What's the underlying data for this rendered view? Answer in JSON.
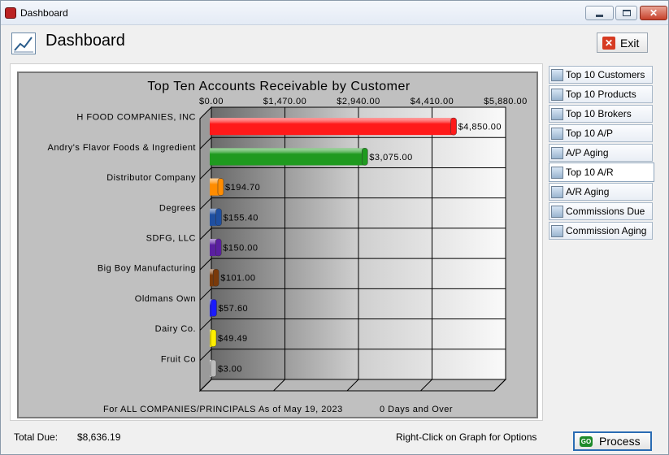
{
  "window": {
    "title": "Dashboard"
  },
  "header": {
    "title": "Dashboard",
    "exit_label": "Exit"
  },
  "sidebar": {
    "items": [
      {
        "label": "Top 10 Customers"
      },
      {
        "label": "Top 10 Products"
      },
      {
        "label": "Top 10 Brokers"
      },
      {
        "label": "Top 10 A/P"
      },
      {
        "label": "A/P Aging"
      },
      {
        "label": "Top 10 A/R",
        "active": true
      },
      {
        "label": "A/R Aging"
      },
      {
        "label": "Commissions Due"
      },
      {
        "label": "Commission Aging"
      }
    ]
  },
  "footer": {
    "total_label": "Total Due:",
    "total_value": "$8,636.19",
    "hint": "Right-Click on Graph for Options",
    "process_label": "Process"
  },
  "chart_data": {
    "type": "bar",
    "orientation": "horizontal",
    "title": "Top Ten Accounts Receivable by Customer",
    "footnote_left": "For ALL COMPANIES/PRINCIPALS As of May 19, 2023",
    "footnote_right": "0 Days and Over",
    "xlim": [
      0,
      5880
    ],
    "x_ticks": [
      "$0.00",
      "$1,470.00",
      "$2,940.00",
      "$4,410.00",
      "$5,880.00"
    ],
    "grid": true,
    "categories": [
      "H FOOD COMPANIES, INC",
      "Andry's Flavor Foods & Ingredient",
      "Distributor Company",
      "Degrees",
      "SDFG, LLC",
      "Big Boy Manufacturing",
      "Oldmans Own",
      "Dairy Co.",
      "Fruit Co"
    ],
    "values": [
      4850.0,
      3075.0,
      194.7,
      155.4,
      150.0,
      101.0,
      57.6,
      49.49,
      3.0
    ],
    "value_labels": [
      "$4,850.00",
      "$3,075.00",
      "$194.70",
      "$155.40",
      "$150.00",
      "$101.00",
      "$57.60",
      "$49.49",
      "$3.00"
    ],
    "colors": [
      "#ff1a1a",
      "#1f9a1f",
      "#ff8c00",
      "#1f4fa0",
      "#5a1fa0",
      "#7a3a0a",
      "#1a1aff",
      "#ffee00",
      "#bbbbbb"
    ]
  }
}
